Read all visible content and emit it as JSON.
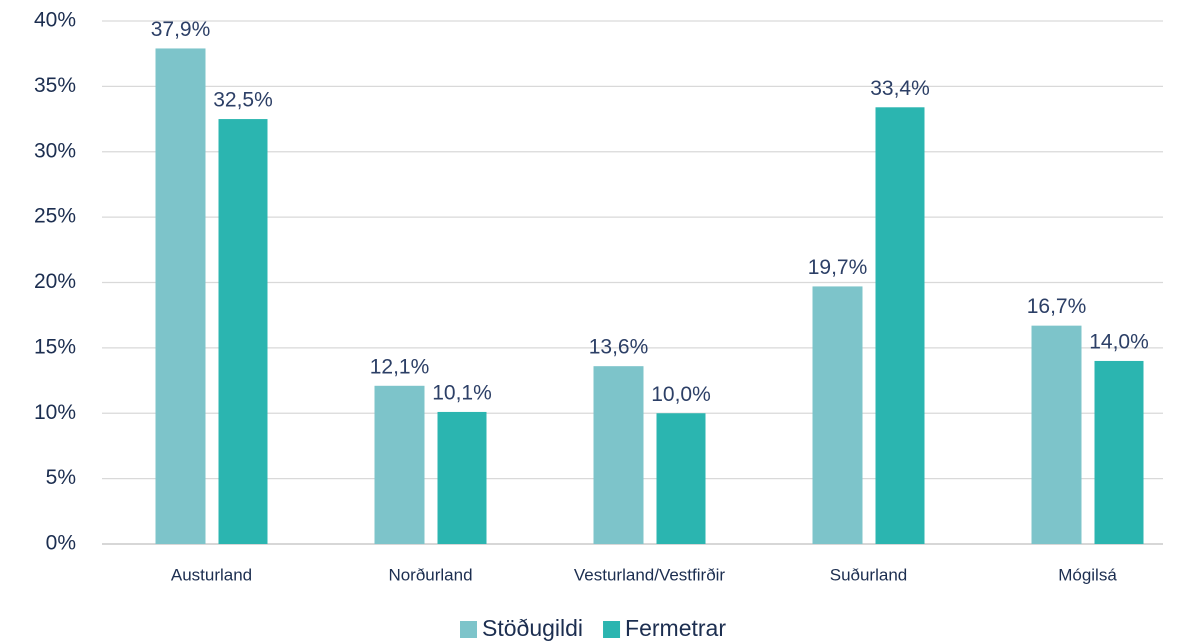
{
  "chart_data": {
    "type": "bar",
    "categories": [
      "Austurland",
      "Norðurland",
      "Vesturland/Vestfirðir",
      "Suðurland",
      "Mógilsá"
    ],
    "series": [
      {
        "name": "Stöðugildi",
        "color": "#7dc4ca",
        "values": [
          37.9,
          12.1,
          13.6,
          19.7,
          16.7
        ],
        "value_labels": [
          "37,9%",
          "12,1%",
          "13,6%",
          "19,7%",
          "16,7%"
        ]
      },
      {
        "name": "Fermetrar",
        "color": "#2bb5b0",
        "values": [
          32.5,
          10.1,
          10.0,
          33.4,
          14.0
        ],
        "value_labels": [
          "32,5%",
          "10,1%",
          "10,0%",
          "33,4%",
          "14,0%"
        ]
      }
    ],
    "ylim": [
      0,
      40
    ],
    "yticks": [
      {
        "value": 0,
        "label": "0%"
      },
      {
        "value": 5,
        "label": "5%"
      },
      {
        "value": 10,
        "label": "10%"
      },
      {
        "value": 15,
        "label": "15%"
      },
      {
        "value": 20,
        "label": "20%"
      },
      {
        "value": 25,
        "label": "25%"
      },
      {
        "value": 30,
        "label": "30%"
      },
      {
        "value": 35,
        "label": "35%"
      },
      {
        "value": 40,
        "label": "40%"
      }
    ],
    "grid": true,
    "legend": "bottom"
  }
}
